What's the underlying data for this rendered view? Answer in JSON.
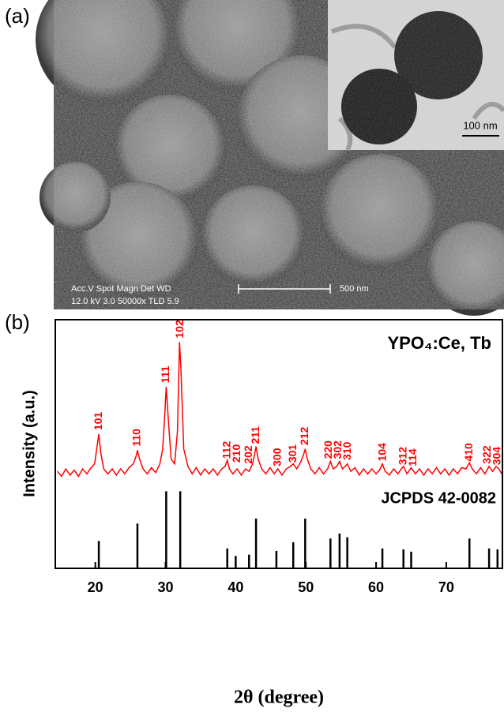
{
  "figure_a": {
    "label": "(a)",
    "sem_info": [
      "Acc.V   Spot Magn    Det  WD",
      "12.0 kV 3.0   50000x   TLD 5.9"
    ],
    "scale_bar": "500 nm",
    "inset_scale_bar": "100 nm"
  },
  "chart_data": {
    "type": "line",
    "panel_label": "(b)",
    "xlabel": "2θ (degree)",
    "ylabel": "Intensity (a.u.)",
    "xlim": [
      14.3,
      78
    ],
    "xticks": [
      20,
      30,
      40,
      50,
      60,
      70
    ],
    "ylim": [
      0,
      100
    ],
    "series": [
      {
        "name": "YPO₄:Ce, Tb",
        "color": "#ff0000",
        "x": [
          14.6,
          15.2,
          15.8,
          16.4,
          17.0,
          17.6,
          18.2,
          18.8,
          19.4,
          19.9,
          20.2,
          20.5,
          20.8,
          21.2,
          21.8,
          22.4,
          23.0,
          23.6,
          24.2,
          24.8,
          25.4,
          25.8,
          26.0,
          26.3,
          26.8,
          27.4,
          28.0,
          28.6,
          29.2,
          29.6,
          29.9,
          30.1,
          30.4,
          30.8,
          31.3,
          31.7,
          32.0,
          32.2,
          32.6,
          33.2,
          33.8,
          34.4,
          35.0,
          35.6,
          36.2,
          36.8,
          37.4,
          38.0,
          38.5,
          38.8,
          39.1,
          39.6,
          40.2,
          40.8,
          41.4,
          41.9,
          42.4,
          42.7,
          42.9,
          43.2,
          43.7,
          44.3,
          44.9,
          45.5,
          46.0,
          46.6,
          47.2,
          47.8,
          48.2,
          48.7,
          49.3,
          49.7,
          49.9,
          50.2,
          50.7,
          51.3,
          51.9,
          52.5,
          53.1,
          53.5,
          53.9,
          54.4,
          54.8,
          55.2,
          55.6,
          55.9,
          56.4,
          57.0,
          57.6,
          58.2,
          58.8,
          59.4,
          60.0,
          60.5,
          60.9,
          61.3,
          61.9,
          62.5,
          63.1,
          63.6,
          63.9,
          64.4,
          65.0,
          65.6,
          66.2,
          66.8,
          67.4,
          68.0,
          68.6,
          69.2,
          69.8,
          70.4,
          71.0,
          71.6,
          72.2,
          72.8,
          73.3,
          73.7,
          74.3,
          74.9,
          75.5,
          76.1,
          76.6,
          77.1,
          77.5,
          77.9
        ],
        "values": [
          39,
          37,
          40,
          37.5,
          39.5,
          37,
          40,
          38,
          40.5,
          42,
          48,
          54,
          46,
          40,
          38,
          40,
          37.5,
          40,
          38,
          40.5,
          42,
          45,
          47.5,
          44,
          40,
          38,
          40.5,
          38.5,
          42,
          48,
          62,
          73,
          60,
          44,
          42,
          55,
          91,
          80,
          48,
          41,
          38,
          40.5,
          37.5,
          40,
          38,
          40,
          37.5,
          40,
          41,
          43.5,
          40,
          38,
          40,
          37.5,
          40,
          39,
          42,
          46,
          49,
          44,
          40,
          38,
          40.5,
          38,
          40,
          37.5,
          40,
          41,
          42,
          40,
          43,
          46,
          48,
          44,
          40,
          38,
          40.5,
          38,
          40,
          43,
          40,
          41,
          43,
          40,
          41,
          42,
          39,
          40.5,
          37.5,
          40,
          38,
          40,
          38,
          39.5,
          42,
          39,
          37.5,
          40,
          38,
          40,
          41,
          38,
          40.5,
          38,
          40,
          37.5,
          40,
          38,
          40.5,
          38,
          40,
          37.5,
          40,
          38,
          40.5,
          40,
          42.5,
          40,
          38,
          40.5,
          38,
          41,
          39,
          41,
          40,
          38
        ]
      }
    ],
    "peak_labels": [
      {
        "text": "101",
        "x": 20.5,
        "y": 55.5
      },
      {
        "text": "110",
        "x": 26.0,
        "y": 49
      },
      {
        "text": "111",
        "x": 30.1,
        "y": 74.5
      },
      {
        "text": "102",
        "x": 32.1,
        "y": 92.5
      },
      {
        "text": "112",
        "x": 38.8,
        "y": 44
      },
      {
        "text": "210",
        "x": 40.2,
        "y": 42.5
      },
      {
        "text": "202",
        "x": 41.9,
        "y": 42
      },
      {
        "text": "211",
        "x": 42.9,
        "y": 50
      },
      {
        "text": "300",
        "x": 46.0,
        "y": 41
      },
      {
        "text": "301",
        "x": 48.2,
        "y": 42.5
      },
      {
        "text": "212",
        "x": 49.9,
        "y": 49.5
      },
      {
        "text": "220",
        "x": 53.3,
        "y": 44
      },
      {
        "text": "302",
        "x": 54.6,
        "y": 44
      },
      {
        "text": "310",
        "x": 56.0,
        "y": 43.5
      },
      {
        "text": "104",
        "x": 61.0,
        "y": 43
      },
      {
        "text": "312",
        "x": 63.9,
        "y": 41.5
      },
      {
        "text": "114",
        "x": 65.3,
        "y": 41
      },
      {
        "text": "410",
        "x": 73.3,
        "y": 43
      },
      {
        "text": "322",
        "x": 75.9,
        "y": 42
      },
      {
        "text": "304",
        "x": 77.3,
        "y": 41.5
      }
    ],
    "reference": {
      "name": "JCPDS 42-0082",
      "color": "#000000",
      "x": [
        20.5,
        26.0,
        30.1,
        32.1,
        38.8,
        40.0,
        41.9,
        42.9,
        45.8,
        48.2,
        49.9,
        53.5,
        54.8,
        55.9,
        60.9,
        63.9,
        65.0,
        73.3,
        76.1,
        77.3
      ],
      "values": [
        11,
        18,
        31,
        31,
        8,
        5,
        5.5,
        20,
        7,
        10.5,
        20,
        12,
        14,
        12.5,
        8,
        7.6,
        6.7,
        12,
        8,
        7.6
      ]
    }
  }
}
